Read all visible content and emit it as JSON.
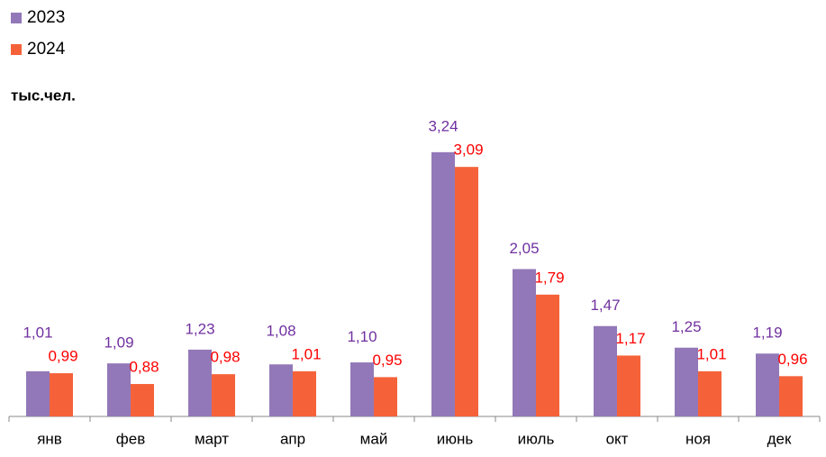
{
  "chart_data": {
    "type": "bar",
    "y_axis_label": "тыс.чел.",
    "categories": [
      "янв",
      "фев",
      "март",
      "апр",
      "май",
      "июнь",
      "июль",
      "окт",
      "ноя",
      "дек"
    ],
    "series": [
      {
        "name": "2023",
        "color": "#9278b8",
        "label_color": "#7030a0",
        "values": [
          1.01,
          1.09,
          1.23,
          1.08,
          1.1,
          3.24,
          2.05,
          1.47,
          1.25,
          1.19
        ],
        "value_labels": [
          "1,01",
          "1,09",
          "1,23",
          "1,08",
          "1,10",
          "3,24",
          "2,05",
          "1,47",
          "1,25",
          "1,19"
        ]
      },
      {
        "name": "2024",
        "color": "#f5623a",
        "label_color": "#ff0000",
        "values": [
          0.99,
          0.88,
          0.98,
          1.01,
          0.95,
          3.09,
          1.79,
          1.17,
          1.01,
          0.96
        ],
        "value_labels": [
          "0,99",
          "0,88",
          "0,98",
          "1,01",
          "0,95",
          "3,09",
          "1,79",
          "1,17",
          "1,01",
          "0,96"
        ]
      }
    ],
    "ylim": [
      0.55,
      3.5
    ],
    "legend": "top-left"
  }
}
